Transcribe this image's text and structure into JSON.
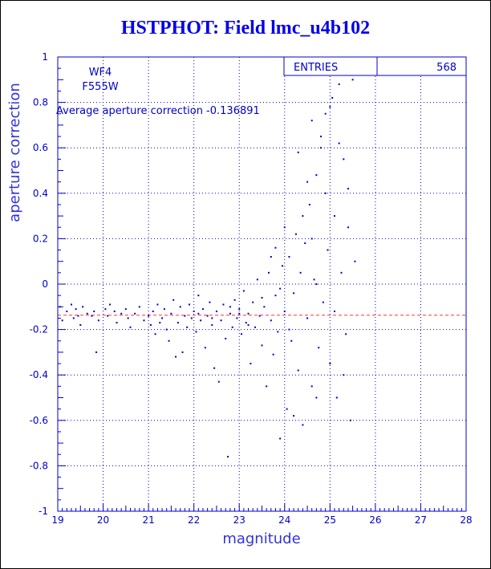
{
  "colors": {
    "axis": "#0000cc",
    "grid": "#0000cc",
    "points": "#0000cc",
    "average_line": "#ff3333",
    "title": "#0000ee"
  },
  "chart_data": {
    "type": "scatter",
    "title": "HSTPHOT: Field lmc_u4b102",
    "xlabel": "magnitude",
    "ylabel": "aperture correction",
    "xlim": [
      19,
      28
    ],
    "ylim": [
      -1,
      1
    ],
    "x_ticks": [
      "19",
      "20",
      "21",
      "22",
      "23",
      "24",
      "25",
      "26",
      "27",
      "28"
    ],
    "y_ticks": [
      "-1",
      "-0.8",
      "-0.6",
      "-0.4",
      "-0.2",
      "0",
      "0.2",
      "0.4",
      "0.6",
      "0.8",
      "1"
    ],
    "grid": "dotted",
    "annotations": {
      "camera": "WF4",
      "filter": "F555W",
      "average_label": "Average aperture correction -0.136891",
      "entries_label": "ENTRIES",
      "entries_value": "568"
    },
    "average_line": -0.136891,
    "series": [
      {
        "points": [
          [
            19.05,
            -0.1
          ],
          [
            19.1,
            -0.16
          ],
          [
            19.2,
            -0.12
          ],
          [
            19.3,
            -0.09
          ],
          [
            19.35,
            -0.15
          ],
          [
            19.4,
            -0.11
          ],
          [
            19.45,
            -0.14
          ],
          [
            19.5,
            -0.18
          ],
          [
            19.55,
            -0.1
          ],
          [
            19.65,
            -0.13
          ],
          [
            19.8,
            -0.12
          ],
          [
            19.85,
            -0.3
          ],
          [
            19.9,
            -0.16
          ],
          [
            20.05,
            -0.11
          ],
          [
            20.1,
            -0.14
          ],
          [
            20.15,
            -0.09
          ],
          [
            20.3,
            -0.17
          ],
          [
            20.4,
            -0.13
          ],
          [
            20.5,
            -0.11
          ],
          [
            20.55,
            -0.15
          ],
          [
            20.6,
            -0.19
          ],
          [
            20.7,
            -0.13
          ],
          [
            20.8,
            -0.1
          ],
          [
            20.9,
            -0.16
          ],
          [
            21.0,
            -0.14
          ],
          [
            21.05,
            -0.18
          ],
          [
            21.1,
            -0.12
          ],
          [
            21.15,
            -0.22
          ],
          [
            21.2,
            -0.09
          ],
          [
            21.3,
            -0.15
          ],
          [
            21.35,
            -0.11
          ],
          [
            21.4,
            -0.2
          ],
          [
            21.45,
            -0.25
          ],
          [
            21.5,
            -0.13
          ],
          [
            21.55,
            -0.07
          ],
          [
            21.6,
            -0.32
          ],
          [
            21.65,
            -0.17
          ],
          [
            21.7,
            -0.1
          ],
          [
            21.75,
            -0.3
          ],
          [
            21.8,
            -0.14
          ],
          [
            21.85,
            -0.19
          ],
          [
            21.9,
            -0.09
          ],
          [
            21.95,
            -0.15
          ],
          [
            22.0,
            -0.12
          ],
          [
            22.05,
            -0.21
          ],
          [
            22.1,
            -0.05
          ],
          [
            22.15,
            -0.16
          ],
          [
            22.2,
            -0.11
          ],
          [
            22.25,
            -0.28
          ],
          [
            22.3,
            -0.14
          ],
          [
            22.35,
            -0.08
          ],
          [
            22.4,
            -0.18
          ],
          [
            22.45,
            -0.37
          ],
          [
            22.5,
            -0.12
          ],
          [
            22.55,
            -0.43
          ],
          [
            22.6,
            -0.16
          ],
          [
            22.65,
            -0.09
          ],
          [
            22.7,
            -0.24
          ],
          [
            22.75,
            -0.76
          ],
          [
            22.8,
            -0.13
          ],
          [
            22.85,
            -0.19
          ],
          [
            22.9,
            -0.07
          ],
          [
            22.95,
            -0.15
          ],
          [
            23.0,
            -0.11
          ],
          [
            23.05,
            -0.22
          ],
          [
            23.1,
            -0.03
          ],
          [
            23.15,
            -0.17
          ],
          [
            23.2,
            -0.13
          ],
          [
            23.25,
            -0.35
          ],
          [
            23.3,
            -0.08
          ],
          [
            23.35,
            -0.19
          ],
          [
            23.4,
            0.02
          ],
          [
            23.45,
            -0.14
          ],
          [
            23.5,
            -0.27
          ],
          [
            23.55,
            -0.1
          ],
          [
            23.6,
            -0.45
          ],
          [
            23.65,
            0.05
          ],
          [
            23.7,
            -0.16
          ],
          [
            23.75,
            -0.31
          ],
          [
            23.8,
            -0.05
          ],
          [
            23.85,
            -0.21
          ],
          [
            23.9,
            -0.68
          ],
          [
            23.95,
            0.08
          ],
          [
            24.0,
            -0.12
          ],
          [
            24.05,
            -0.55
          ],
          [
            24.1,
            0.12
          ],
          [
            24.15,
            -0.25
          ],
          [
            24.2,
            -0.04
          ],
          [
            24.25,
            0.22
          ],
          [
            24.3,
            -0.38
          ],
          [
            24.35,
            0.05
          ],
          [
            24.4,
            -0.62
          ],
          [
            24.45,
            0.18
          ],
          [
            24.5,
            -0.15
          ],
          [
            24.55,
            0.35
          ],
          [
            24.6,
            -0.45
          ],
          [
            24.65,
            0.02
          ],
          [
            24.7,
            0.48
          ],
          [
            24.75,
            -0.28
          ],
          [
            24.8,
            0.6
          ],
          [
            24.85,
            -0.08
          ],
          [
            24.9,
            0.75
          ],
          [
            24.95,
            0.15
          ],
          [
            25.0,
            -0.35
          ],
          [
            25.05,
            0.82
          ],
          [
            25.1,
            0.3
          ],
          [
            25.15,
            -0.5
          ],
          [
            25.2,
            0.88
          ],
          [
            25.25,
            0.05
          ],
          [
            25.3,
            0.55
          ],
          [
            25.35,
            -0.22
          ],
          [
            25.4,
            0.42
          ],
          [
            25.45,
            -0.6
          ],
          [
            25.5,
            0.9
          ],
          [
            25.55,
            0.1
          ],
          [
            24.3,
            0.58
          ],
          [
            24.6,
            0.72
          ],
          [
            24.8,
            0.65
          ],
          [
            25.0,
            0.78
          ],
          [
            24.5,
            0.45
          ],
          [
            25.2,
            0.62
          ],
          [
            24.7,
            -0.5
          ],
          [
            25.4,
            0.25
          ],
          [
            24.2,
            -0.58
          ],
          [
            23.7,
            0.12
          ],
          [
            23.9,
            -0.02
          ],
          [
            24.1,
            -0.2
          ],
          [
            24.4,
            0.3
          ],
          [
            24.9,
            0.4
          ],
          [
            25.3,
            -0.4
          ],
          [
            24.6,
            0.2
          ],
          [
            23.5,
            -0.06
          ],
          [
            23.8,
            0.16
          ],
          [
            24.0,
            0.25
          ],
          [
            24.7,
            0.0
          ],
          [
            25.1,
            -0.12
          ],
          [
            22.8,
            -0.1
          ],
          [
            23.2,
            -0.18
          ],
          [
            21.25,
            -0.17
          ],
          [
            20.25,
            -0.12
          ],
          [
            19.75,
            -0.14
          ],
          [
            22.1,
            -0.13
          ],
          [
            22.4,
            -0.15
          ],
          [
            23.0,
            -0.13
          ]
        ]
      }
    ]
  }
}
